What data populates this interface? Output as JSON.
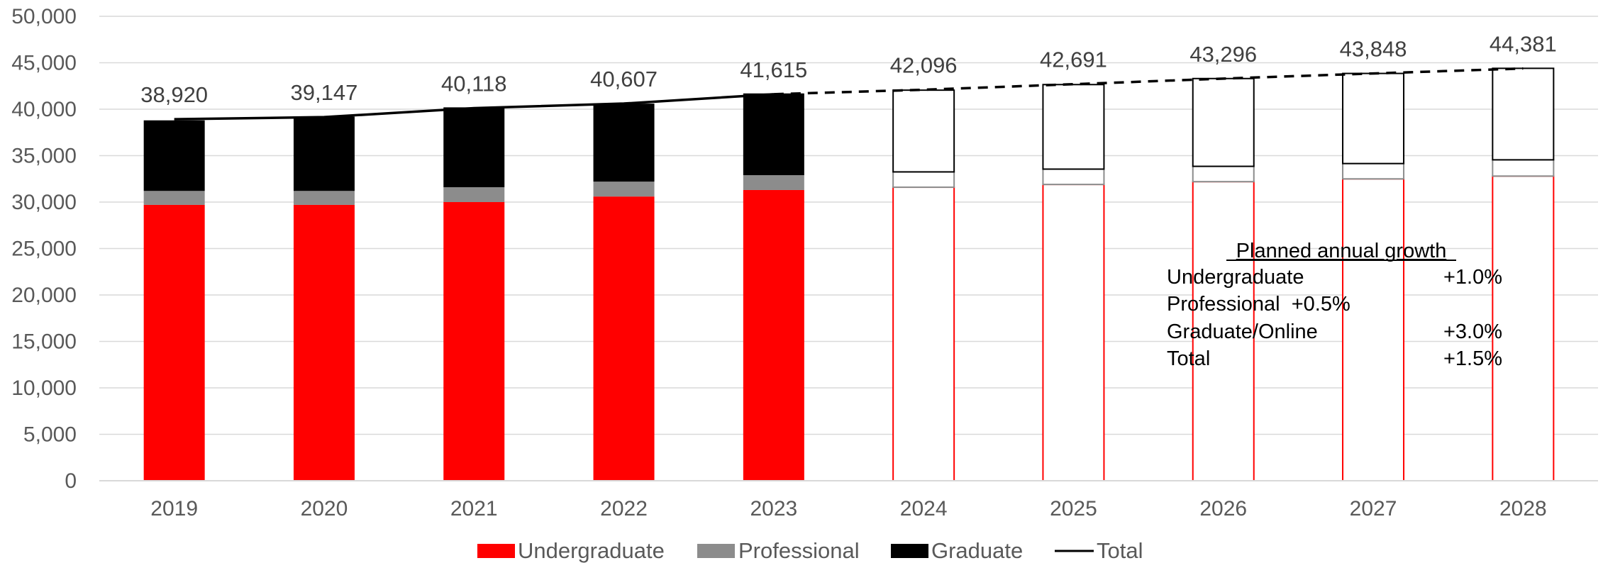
{
  "chart_data": {
    "type": "bar",
    "stacked": true,
    "categories": [
      "2019",
      "2020",
      "2021",
      "2022",
      "2023",
      "2024",
      "2025",
      "2026",
      "2027",
      "2028"
    ],
    "projected_from": "2024",
    "series": [
      {
        "name": "Undergraduate",
        "color": "#ff0000",
        "values": [
          29700,
          29700,
          30000,
          30600,
          31300,
          31600,
          31900,
          32200,
          32500,
          32800
        ]
      },
      {
        "name": "Professional",
        "color": "#8c8c8c",
        "values": [
          1500,
          1500,
          1600,
          1600,
          1600,
          1650,
          1650,
          1650,
          1650,
          1750
        ]
      },
      {
        "name": "Graduate",
        "color": "#000000",
        "values": [
          7600,
          8000,
          8600,
          8400,
          8800,
          8800,
          9100,
          9450,
          9700,
          9850
        ]
      }
    ],
    "total": {
      "name": "Total",
      "color": "#000000",
      "values": [
        38920,
        39147,
        40118,
        40607,
        41615,
        42096,
        42691,
        43296,
        43848,
        44381
      ]
    },
    "total_labels": [
      "38,920",
      "39,147",
      "40,118",
      "40,607",
      "41,615",
      "42,096",
      "42,691",
      "43,296",
      "43,848",
      "44,381"
    ],
    "y_ticks": [
      "0",
      "5,000",
      "10,000",
      "15,000",
      "20,000",
      "25,000",
      "30,000",
      "35,000",
      "40,000",
      "45,000",
      "50,000"
    ],
    "ylim": [
      0,
      50000
    ],
    "grid": true,
    "legend_position": "bottom",
    "annotation": {
      "title": "Planned annual growth",
      "rows": [
        {
          "label": "Undergraduate",
          "value": "+1.0%"
        },
        {
          "label": "Professional  +0.5%",
          "value": ""
        },
        {
          "label": "Graduate/Online",
          "value": "+3.0%"
        },
        {
          "label": "Total",
          "value": "+1.5%"
        }
      ]
    }
  }
}
